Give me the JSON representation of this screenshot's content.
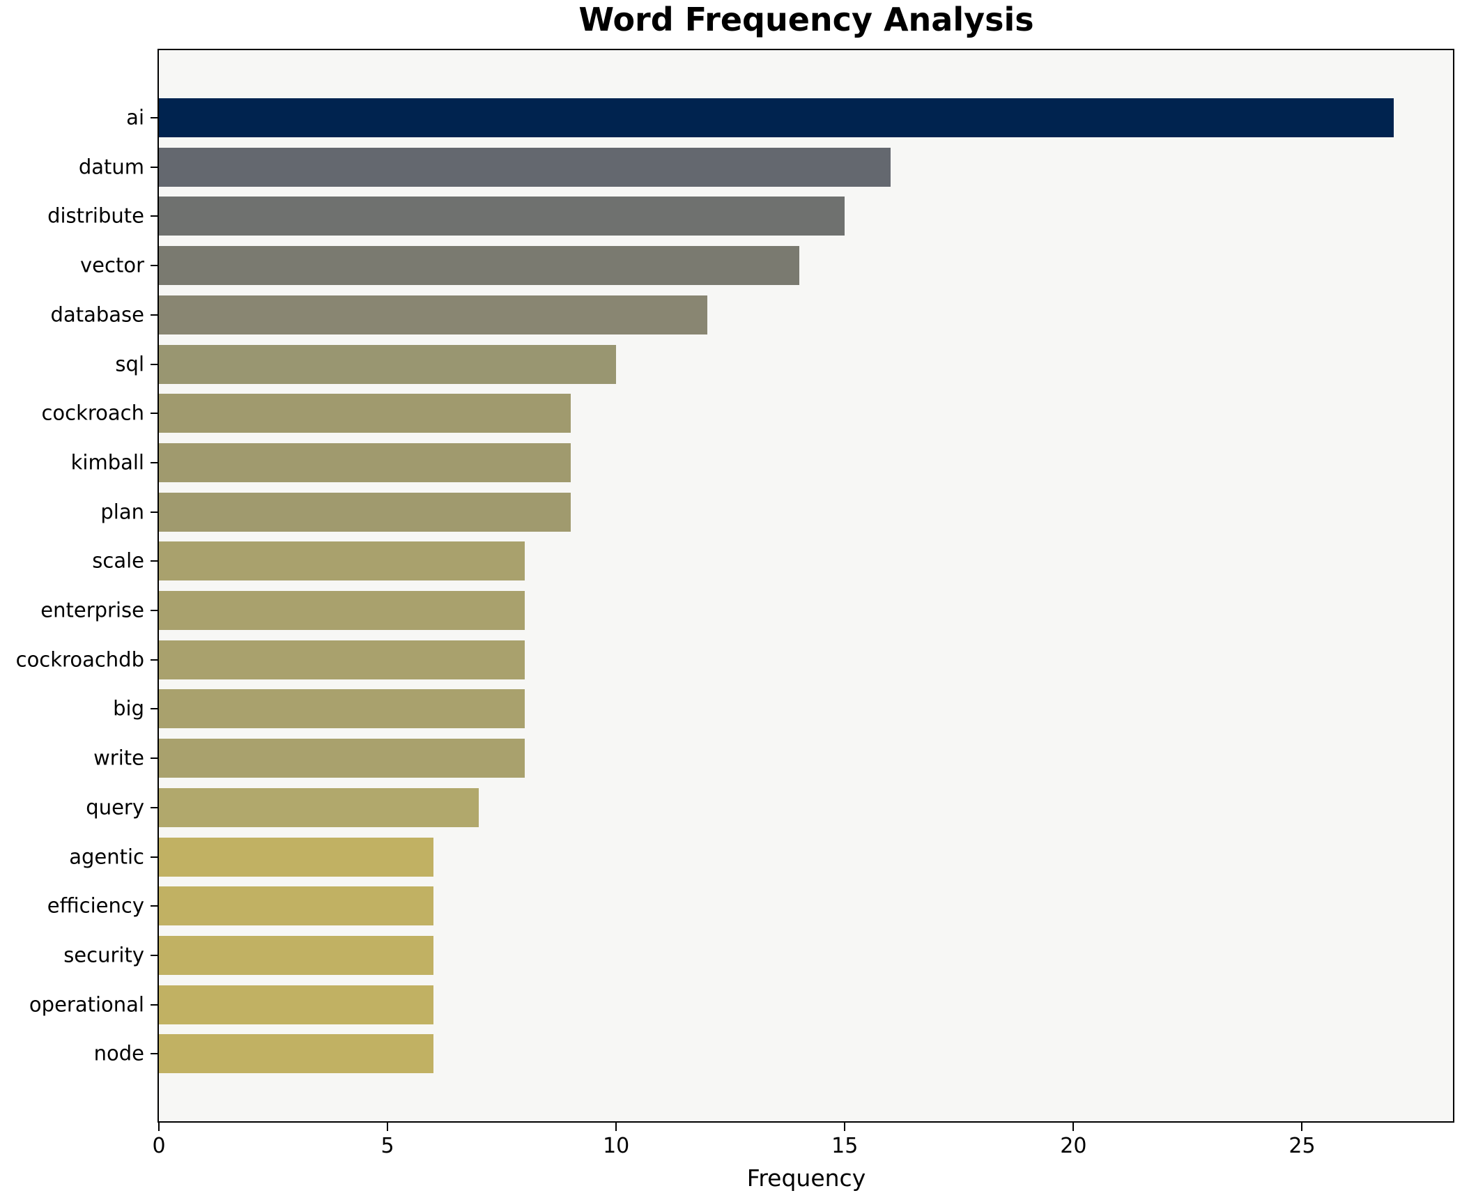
{
  "chart_data": {
    "type": "bar",
    "orientation": "horizontal",
    "title": "Word Frequency Analysis",
    "xlabel": "Frequency",
    "ylabel": "",
    "categories": [
      "ai",
      "datum",
      "distribute",
      "vector",
      "database",
      "sql",
      "cockroach",
      "kimball",
      "plan",
      "scale",
      "enterprise",
      "cockroachdb",
      "big",
      "write",
      "query",
      "agentic",
      "efficiency",
      "security",
      "operational",
      "node"
    ],
    "values": [
      27,
      16,
      15,
      14,
      12,
      10,
      9,
      9,
      9,
      8,
      8,
      8,
      8,
      8,
      7,
      6,
      6,
      6,
      6,
      6
    ],
    "bar_colors": [
      "#00234f",
      "#64686f",
      "#6f716f",
      "#7a7a70",
      "#898672",
      "#999671",
      "#a09a6e",
      "#a09a6e",
      "#a09a6e",
      "#a9a16d",
      "#a9a16d",
      "#a9a16d",
      "#a9a16d",
      "#a9a16d",
      "#b1a86c",
      "#c1b163",
      "#c1b163",
      "#c1b163",
      "#c1b163",
      "#c1b163"
    ],
    "xlim": [
      0,
      28.3
    ],
    "xticks": [
      0,
      5,
      10,
      15,
      20,
      25
    ],
    "grid": false,
    "legend": false,
    "plot_background": "#f7f7f5",
    "axis_color": "#000000"
  }
}
